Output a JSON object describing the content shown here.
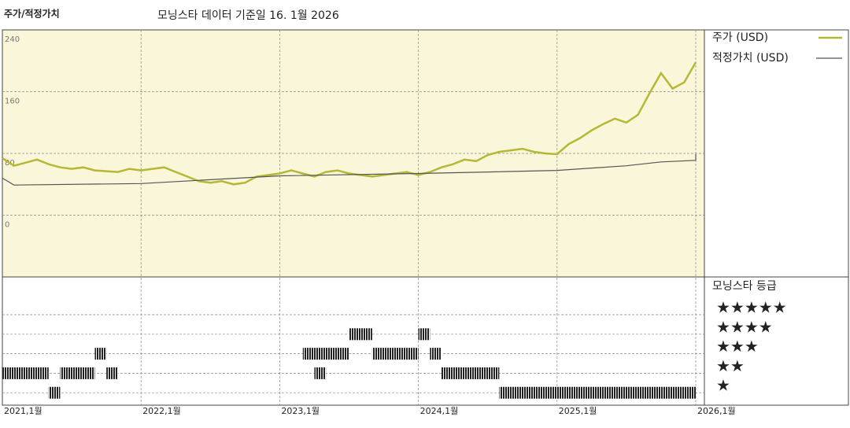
{
  "chart_data": {
    "type": "line",
    "title": "주가/적정가치",
    "subtitle": "모닝스타 데이터 기준일 16. 1월 2026",
    "ylim": [
      -80,
      240
    ],
    "yticks": [
      0,
      80,
      160,
      240
    ],
    "grid": true,
    "xlim": [
      "2021-01",
      "2026-04"
    ],
    "xticks": [
      {
        "value": "2021-01",
        "label": "2021,1월"
      },
      {
        "value": "2022-01",
        "label": "2022,1월"
      },
      {
        "value": "2023-01",
        "label": "2023,1월"
      },
      {
        "value": "2024-01",
        "label": "2024,1월"
      },
      {
        "value": "2025-01",
        "label": "2025,1월"
      },
      {
        "value": "2026-01",
        "label": "2026,1월"
      }
    ],
    "series": [
      {
        "name": "주가 (USD)",
        "color": "#b5b834",
        "x": [
          "2021-01",
          "2021-02",
          "2021-03",
          "2021-04",
          "2021-05",
          "2021-06",
          "2021-07",
          "2021-08",
          "2021-09",
          "2021-10",
          "2021-11",
          "2021-12",
          "2022-01",
          "2022-02",
          "2022-03",
          "2022-04",
          "2022-05",
          "2022-06",
          "2022-07",
          "2022-08",
          "2022-09",
          "2022-10",
          "2022-11",
          "2022-12",
          "2023-01",
          "2023-02",
          "2023-03",
          "2023-04",
          "2023-05",
          "2023-06",
          "2023-07",
          "2023-08",
          "2023-09",
          "2023-10",
          "2023-11",
          "2023-12",
          "2024-01",
          "2024-02",
          "2024-03",
          "2024-04",
          "2024-05",
          "2024-06",
          "2024-07",
          "2024-08",
          "2024-09",
          "2024-10",
          "2024-11",
          "2024-12",
          "2025-01",
          "2025-02",
          "2025-03",
          "2025-04",
          "2025-05",
          "2025-06",
          "2025-07",
          "2025-08",
          "2025-09",
          "2025-10",
          "2025-11",
          "2025-12",
          "2026-01"
        ],
        "values": [
          74,
          64,
          68,
          72,
          66,
          62,
          60,
          62,
          58,
          57,
          56,
          60,
          58,
          60,
          62,
          56,
          50,
          44,
          42,
          44,
          40,
          42,
          50,
          52,
          54,
          58,
          54,
          50,
          56,
          58,
          54,
          52,
          50,
          52,
          54,
          56,
          52,
          56,
          62,
          66,
          72,
          70,
          78,
          82,
          84,
          86,
          82,
          80,
          79,
          92,
          100,
          110,
          118,
          125,
          120,
          130,
          158,
          184,
          164,
          172,
          198
        ]
      },
      {
        "name": "적정가치 (USD)",
        "color": "#555555",
        "x": [
          "2021-01",
          "2021-02",
          "2022-01",
          "2022-07",
          "2023-01",
          "2024-01",
          "2024-07",
          "2025-01",
          "2025-07",
          "2025-10",
          "2026-01",
          "2026-01"
        ],
        "values": [
          48,
          39,
          41,
          46,
          51,
          54,
          56,
          58,
          64,
          69,
          71,
          79
        ]
      }
    ],
    "ratings": {
      "title": "모닝스타 등급",
      "labels": [
        "★★★★★",
        "★★★★",
        "★★★",
        "★★",
        "★"
      ],
      "periods": [
        {
          "start": "2021-01",
          "end": "2021-05",
          "stars": 2
        },
        {
          "start": "2021-05",
          "end": "2021-06",
          "stars": 1
        },
        {
          "start": "2021-06",
          "end": "2021-09",
          "stars": 2
        },
        {
          "start": "2021-09",
          "end": "2021-10",
          "stars": 3
        },
        {
          "start": "2021-10",
          "end": "2021-11",
          "stars": 2
        },
        {
          "start": "2023-03",
          "end": "2023-07",
          "stars": 3
        },
        {
          "start": "2023-04",
          "end": "2023-05",
          "stars": 2
        },
        {
          "start": "2023-07",
          "end": "2023-09",
          "stars": 4
        },
        {
          "start": "2023-09",
          "end": "2024-01",
          "stars": 3
        },
        {
          "start": "2024-01",
          "end": "2024-02",
          "stars": 4
        },
        {
          "start": "2024-02",
          "end": "2024-03",
          "stars": 3
        },
        {
          "start": "2024-03",
          "end": "2024-08",
          "stars": 2
        },
        {
          "start": "2024-08",
          "end": "2026-01",
          "stars": 1
        }
      ]
    }
  }
}
